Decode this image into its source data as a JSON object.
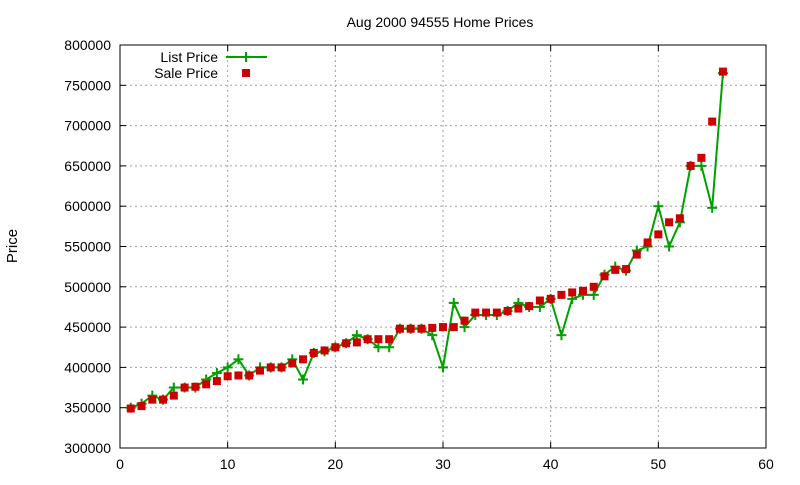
{
  "chart_data": {
    "type": "line",
    "title": "Aug 2000 94555 Home Prices",
    "xlabel": "",
    "ylabel": "Price",
    "xlim": [
      0,
      60
    ],
    "ylim": [
      300000,
      800000
    ],
    "xticks": [
      0,
      10,
      20,
      30,
      40,
      50,
      60
    ],
    "yticks": [
      300000,
      350000,
      400000,
      450000,
      500000,
      550000,
      600000,
      650000,
      700000,
      750000,
      800000
    ],
    "grid": true,
    "legend_position": "top-left",
    "x": [
      1,
      2,
      3,
      4,
      5,
      6,
      7,
      8,
      9,
      10,
      11,
      12,
      13,
      14,
      15,
      16,
      17,
      18,
      19,
      20,
      21,
      22,
      23,
      24,
      25,
      26,
      27,
      28,
      29,
      30,
      31,
      32,
      33,
      34,
      35,
      36,
      37,
      38,
      39,
      40,
      41,
      42,
      43,
      44,
      45,
      46,
      47,
      48,
      49,
      50,
      51,
      52,
      53,
      54,
      55,
      56
    ],
    "series": [
      {
        "name": "List Price",
        "color": "#00a000",
        "style": "line-plus",
        "values": [
          350000,
          355000,
          365000,
          360000,
          375000,
          375000,
          375000,
          385000,
          393000,
          400000,
          410000,
          390000,
          400000,
          400000,
          400000,
          410000,
          385000,
          418000,
          420000,
          425000,
          430000,
          440000,
          435000,
          425000,
          425000,
          448000,
          448000,
          448000,
          440000,
          400000,
          480000,
          450000,
          465000,
          465000,
          465000,
          470000,
          480000,
          475000,
          475000,
          485000,
          440000,
          485000,
          490000,
          490000,
          515000,
          525000,
          520000,
          545000,
          550000,
          600000,
          550000,
          580000,
          650000,
          650000,
          598000,
          765000
        ]
      },
      {
        "name": "Sale Price",
        "color": "#cc0000",
        "style": "square",
        "values": [
          349000,
          352000,
          360000,
          360000,
          365000,
          375000,
          376000,
          379000,
          383000,
          389000,
          390000,
          390000,
          396000,
          400000,
          400000,
          405000,
          410000,
          418000,
          421000,
          425000,
          430000,
          431000,
          435000,
          435000,
          435000,
          448000,
          448000,
          448000,
          449000,
          450000,
          450000,
          458000,
          468000,
          468000,
          468000,
          470000,
          473000,
          476000,
          483000,
          485000,
          490000,
          493000,
          495000,
          500000,
          513000,
          521000,
          522000,
          540000,
          555000,
          565000,
          580000,
          585000,
          650000,
          660000,
          705000,
          767000
        ]
      }
    ]
  }
}
